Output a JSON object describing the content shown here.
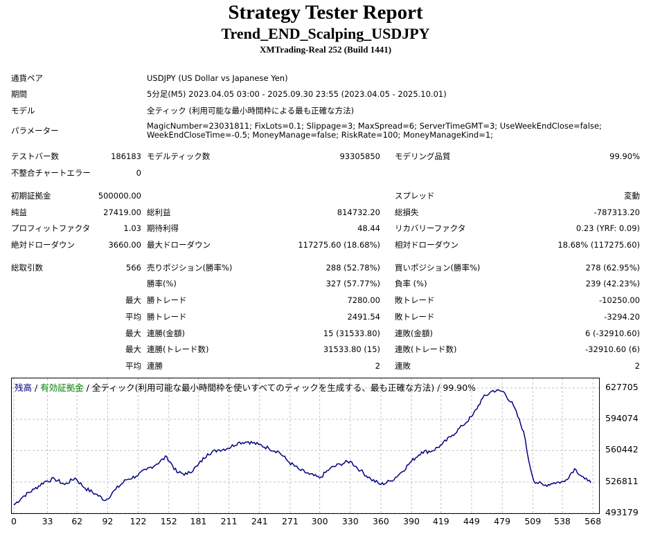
{
  "header": {
    "title": "Strategy Tester Report",
    "ea_name": "Trend_END_Scalping_USDJPY",
    "server": "XMTrading-Real 252 (Build 1441)"
  },
  "info": {
    "symbol_label": "通貨ペア",
    "symbol_value": "USDJPY (US Dollar vs Japanese Yen)",
    "period_label": "期間",
    "period_value": "5分足(M5) 2023.04.05 03:00 - 2025.09.30 23:55 (2023.04.05 - 2025.10.01)",
    "model_label": "モデル",
    "model_value": "全ティック (利用可能な最小時間枠による最も正確な方法)",
    "params_label": "パラメーター",
    "params_line1": "MagicNumber=23031811; FixLots=0.1; Slippage=3; MaxSpread=6; ServerTimeGMT=3; UseWeekEndClose=false;",
    "params_line2": "WeekEndCloseTime=-0.5; MoneyManage=false; RiskRate=100; MoneyManageKind=1;"
  },
  "stats": {
    "bars_label": "テストバー数",
    "bars_value": "186183",
    "ticks_label": "モデルティック数",
    "ticks_value": "93305850",
    "quality_label": "モデリング品質",
    "quality_value": "99.90%",
    "mismatch_label": "不整合チャートエラー",
    "mismatch_value": "0",
    "deposit_label": "初期証拠金",
    "deposit_value": "500000.00",
    "spread_label": "スプレッド",
    "spread_value": "変動",
    "net_label": "純益",
    "net_value": "27419.00",
    "gross_profit_label": "総利益",
    "gross_profit_value": "814732.20",
    "gross_loss_label": "総損失",
    "gross_loss_value": "-787313.20",
    "pf_label": "プロフィットファクタ",
    "pf_value": "1.03",
    "expected_label": "期待利得",
    "expected_value": "48.44",
    "recovery_label": "リカバリーファクタ",
    "recovery_value": "0.23 (YRF: 0.09)",
    "abs_dd_label": "絶対ドローダウン",
    "abs_dd_value": "3660.00",
    "max_dd_label": "最大ドローダウン",
    "max_dd_value": "117275.60 (18.68%)",
    "rel_dd_label": "相対ドローダウン",
    "rel_dd_value": "18.68% (117275.60)",
    "trades_label": "総取引数",
    "trades_value": "566",
    "short_label": "売りポジション(勝率%)",
    "short_value": "288 (52.78%)",
    "long_label": "買いポジション(勝率%)",
    "long_value": "278 (62.95%)",
    "winrate_label": "勝率(%)",
    "winrate_value": "327 (57.77%)",
    "lossrate_label": "負率 (%)",
    "lossrate_value": "239 (42.23%)",
    "max_prefix": "最大",
    "avg_prefix": "平均",
    "largest_win_label": "勝トレード",
    "largest_win_value": "7280.00",
    "largest_loss_label": "敗トレード",
    "largest_loss_value": "-10250.00",
    "avg_win_label": "勝トレード",
    "avg_win_value": "2491.54",
    "avg_loss_label": "敗トレード",
    "avg_loss_value": "-3294.20",
    "max_cons_win_label": "連勝(金額)",
    "max_cons_win_value": "15 (31533.80)",
    "max_cons_loss_label": "連敗(金額)",
    "max_cons_loss_value": "6 (-32910.60)",
    "max_cons_profit_label": "連勝(トレード数)",
    "max_cons_profit_value": "31533.80 (15)",
    "max_cons_lossamt_label": "連敗(トレード数)",
    "max_cons_lossamt_value": "-32910.60 (6)",
    "avg_cons_win_label": "連勝",
    "avg_cons_win_value": "2",
    "avg_cons_loss_label": "連敗",
    "avg_cons_loss_value": "2"
  },
  "chart_legend": {
    "balance": "残高",
    "sep1": " / ",
    "equity": "有効証拠金",
    "rest": " / 全ティック(利用可能な最小時間枠を使いすべてのティックを生成する、最も正確な方法) / 99.90%",
    "balance_color": "#000080",
    "equity_color": "#008000"
  },
  "chart_data": {
    "type": "line",
    "ylim": [
      493179,
      638000
    ],
    "y_ticks": [
      "627705",
      "594074",
      "560442",
      "526811",
      "493179"
    ],
    "x_ticks": [
      "0",
      "33",
      "62",
      "92",
      "122",
      "152",
      "181",
      "211",
      "241",
      "271",
      "300",
      "330",
      "360",
      "390",
      "419",
      "449",
      "479",
      "509",
      "538",
      "568"
    ],
    "x_tick_values": [
      0,
      33,
      62,
      92,
      122,
      152,
      181,
      211,
      241,
      271,
      300,
      330,
      360,
      390,
      419,
      449,
      479,
      509,
      538,
      568
    ],
    "series": [
      {
        "color": "#000080",
        "x": [
          0,
          10,
          20,
          30,
          40,
          50,
          60,
          70,
          80,
          90,
          100,
          110,
          120,
          130,
          140,
          150,
          160,
          170,
          180,
          190,
          200,
          210,
          220,
          230,
          240,
          250,
          260,
          270,
          280,
          290,
          300,
          310,
          320,
          330,
          340,
          350,
          360,
          370,
          380,
          390,
          400,
          410,
          420,
          430,
          440,
          450,
          460,
          470,
          480,
          490,
          500,
          505,
          510,
          520,
          530,
          540,
          550,
          560,
          563,
          566
        ],
        "values": [
          502000,
          512000,
          519000,
          527000,
          530000,
          524000,
          531000,
          520000,
          514000,
          507000,
          519000,
          529000,
          533000,
          540000,
          546000,
          554000,
          537000,
          535000,
          544000,
          557000,
          561000,
          563000,
          569000,
          570000,
          567000,
          563000,
          559000,
          548000,
          540000,
          535000,
          531000,
          541000,
          546000,
          549000,
          539000,
          530000,
          524000,
          528000,
          537000,
          549000,
          559000,
          560000,
          567000,
          577000,
          587000,
          598000,
          617000,
          625000,
          624000,
          609000,
          581000,
          550000,
          528000,
          523000,
          526000,
          527000,
          541000,
          530000,
          528000,
          526000
        ]
      }
    ]
  }
}
